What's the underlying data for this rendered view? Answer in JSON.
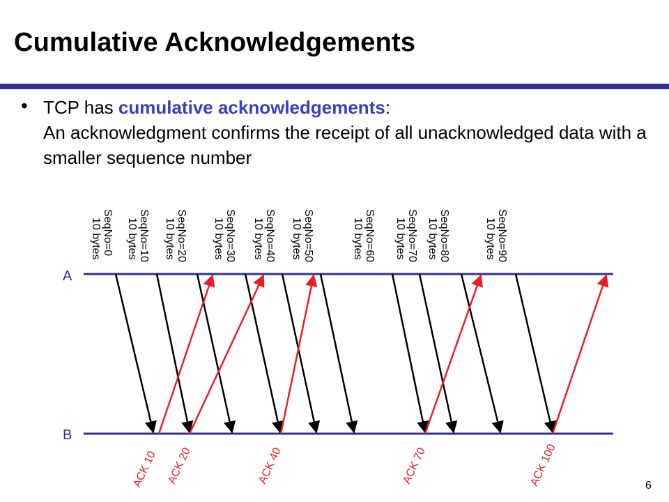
{
  "slide": {
    "title": "Cumulative Acknowledgements",
    "bullet": {
      "prefix": "TCP has ",
      "highlight": "cumulative acknowledgements",
      "suffix": ":",
      "body": "An acknowledgment confirms the receipt of all unacknowledged data with a smaller sequence number"
    },
    "page_number": "6"
  },
  "diagram": {
    "hosts": {
      "top": "A",
      "bottom": "B"
    },
    "segments": [
      {
        "seq": "SeqNo=0",
        "size": "10 bytes"
      },
      {
        "seq": "SeqNo=10",
        "size": "10 bytes"
      },
      {
        "seq": "SeqNo=20",
        "size": "10 bytes"
      },
      {
        "seq": "SeqNo=30",
        "size": "10 bytes"
      },
      {
        "seq": "SeqNo=40",
        "size": "10 bytes"
      },
      {
        "seq": "SeqNo=50",
        "size": "10 bytes"
      },
      {
        "seq": "SeqNo=60",
        "size": "10 bytes"
      },
      {
        "seq": "SeqNo=70",
        "size": "10 bytes"
      },
      {
        "seq": "SeqNo=80",
        "size": "10 bytes"
      },
      {
        "seq": "SeqNo=90",
        "size": "10 bytes"
      }
    ],
    "acks": [
      "ACK 10",
      "ACK 20",
      "ACK 40",
      "ACK 70",
      "ACK 100"
    ],
    "colors": {
      "timeline": "#2e3192",
      "segment": "#000000",
      "ack": "#ee1c25",
      "title_rule": "#2e3192",
      "highlight": "#3a3fbf"
    }
  }
}
